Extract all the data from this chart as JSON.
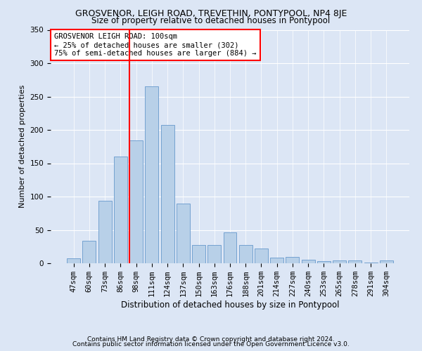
{
  "title": "GROSVENOR, LEIGH ROAD, TREVETHIN, PONTYPOOL, NP4 8JE",
  "subtitle": "Size of property relative to detached houses in Pontypool",
  "xlabel": "Distribution of detached houses by size in Pontypool",
  "ylabel": "Number of detached properties",
  "categories": [
    "47sqm",
    "60sqm",
    "73sqm",
    "86sqm",
    "98sqm",
    "111sqm",
    "124sqm",
    "137sqm",
    "150sqm",
    "163sqm",
    "176sqm",
    "188sqm",
    "201sqm",
    "214sqm",
    "227sqm",
    "240sqm",
    "253sqm",
    "265sqm",
    "278sqm",
    "291sqm",
    "304sqm"
  ],
  "values": [
    7,
    34,
    94,
    160,
    184,
    265,
    207,
    89,
    27,
    27,
    46,
    27,
    22,
    8,
    9,
    5,
    3,
    4,
    4,
    1,
    4
  ],
  "bar_color": "#b8d0e8",
  "bar_edgecolor": "#6699cc",
  "vline_x_index": 4,
  "vline_color": "red",
  "annotation_text": "GROSVENOR LEIGH ROAD: 100sqm\n← 25% of detached houses are smaller (302)\n75% of semi-detached houses are larger (884) →",
  "annotation_box_color": "white",
  "annotation_box_edgecolor": "red",
  "ylim": [
    0,
    350
  ],
  "yticks": [
    0,
    50,
    100,
    150,
    200,
    250,
    300,
    350
  ],
  "footer1": "Contains HM Land Registry data © Crown copyright and database right 2024.",
  "footer2": "Contains public sector information licensed under the Open Government Licence v3.0.",
  "bg_color": "#dce6f5",
  "plot_bg_color": "#dce6f5",
  "title_fontsize": 9,
  "subtitle_fontsize": 8.5,
  "ylabel_fontsize": 8,
  "xlabel_fontsize": 8.5,
  "tick_fontsize": 7.5,
  "footer_fontsize": 6.5
}
